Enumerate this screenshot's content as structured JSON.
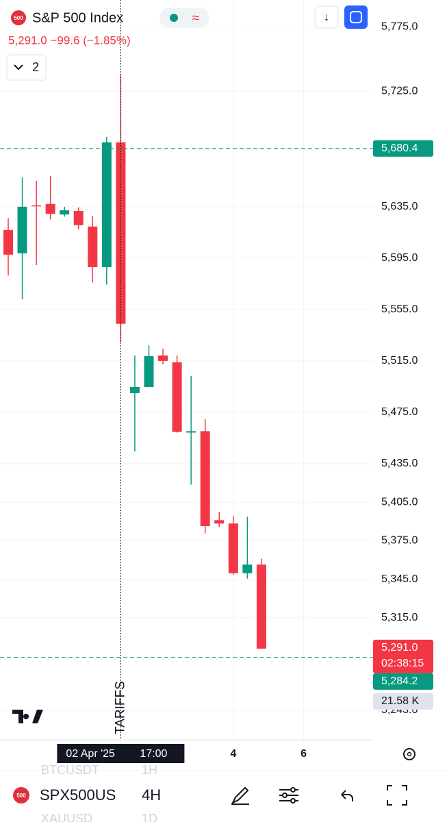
{
  "chart_data": {
    "type": "candlestick",
    "symbol_badge": "500",
    "title": "S&P 500 Index",
    "change_line": "5,291.0 −99.6 (−1.85%)",
    "indicators_count": "2",
    "categories": [
      null,
      null,
      null,
      null,
      null,
      null,
      null,
      null,
      null,
      null,
      null,
      null,
      null,
      null,
      null,
      null,
      null,
      null,
      null
    ],
    "open": [
      5616.9,
      5598.8,
      5636.1,
      5637.2,
      5629.0,
      5631.7,
      5619.6,
      5588.0,
      5685.2,
      5489.9,
      5494.7,
      5519.2,
      5513.9,
      5459.2,
      5460.3,
      5391.0,
      5388.4,
      5349.7,
      5356.4
    ],
    "high": [
      5626.2,
      5657.9,
      5655.2,
      5659.0,
      5635.0,
      5634.5,
      5627.9,
      5689.5,
      5737.4,
      5519.2,
      5527.1,
      5524.5,
      5519.2,
      5503.3,
      5469.7,
      5397.2,
      5394.1,
      5393.6,
      5361.0
    ],
    "low": [
      5581.5,
      5563.1,
      5589.6,
      5625.1,
      5627.3,
      5617.5,
      5576.1,
      5574.5,
      5529.7,
      5444.5,
      5494.7,
      5512.3,
      5459.2,
      5418.7,
      5380.7,
      5385.9,
      5348.6,
      5345.5,
      5291.0
    ],
    "close": [
      5597.7,
      5635.0,
      5635.5,
      5629.5,
      5632.3,
      5620.7,
      5588.0,
      5685.2,
      5543.9,
      5494.7,
      5518.7,
      5515.0,
      5459.7,
      5460.3,
      5386.4,
      5388.4,
      5349.7,
      5356.4,
      5291.0
    ],
    "up_color": "#089981",
    "down_color": "#f23645",
    "ylim": [
      5220,
      5796
    ],
    "yticks": [
      {
        "value": 5775,
        "label": "5,775.0"
      },
      {
        "value": 5725,
        "label": "5,725.0"
      },
      {
        "value": 5635,
        "label": "5,635.0"
      },
      {
        "value": 5595,
        "label": "5,595.0"
      },
      {
        "value": 5555,
        "label": "5,555.0"
      },
      {
        "value": 5515,
        "label": "5,515.0"
      },
      {
        "value": 5475,
        "label": "5,475.0"
      },
      {
        "value": 5435,
        "label": "5,435.0"
      },
      {
        "value": 5405,
        "label": "5,405.0"
      },
      {
        "value": 5375,
        "label": "5,375.0"
      },
      {
        "value": 5345,
        "label": "5,345.0"
      },
      {
        "value": 5315,
        "label": "5,315.0"
      },
      {
        "value": 5243,
        "label": "5,243.0"
      }
    ],
    "xticks": [
      {
        "value": 16,
        "label": "4"
      },
      {
        "value": 21,
        "label": "6"
      }
    ],
    "crosshair": {
      "index": 8,
      "date": "02 Apr '25",
      "time": "17:00"
    },
    "annotation": "TARIFFS",
    "price_lines": [
      {
        "value": 5680.4,
        "label": "5,680.4",
        "color": "#089981"
      },
      {
        "value": 5284.2,
        "label": "5,284.2",
        "color": "#089981"
      }
    ],
    "last_price": {
      "value": 5291.0,
      "label": "5,291.0",
      "countdown": "02:38:15",
      "color": "#f23645"
    },
    "volume_label": "21.58 K",
    "grid": true,
    "toolbar": {
      "symbol": "SPX500US",
      "interval": "4H",
      "prev_symbol": "BTCUSDT",
      "prev_interval": "1H",
      "next_symbol": "XAUUSD",
      "next_interval": "1D"
    }
  }
}
